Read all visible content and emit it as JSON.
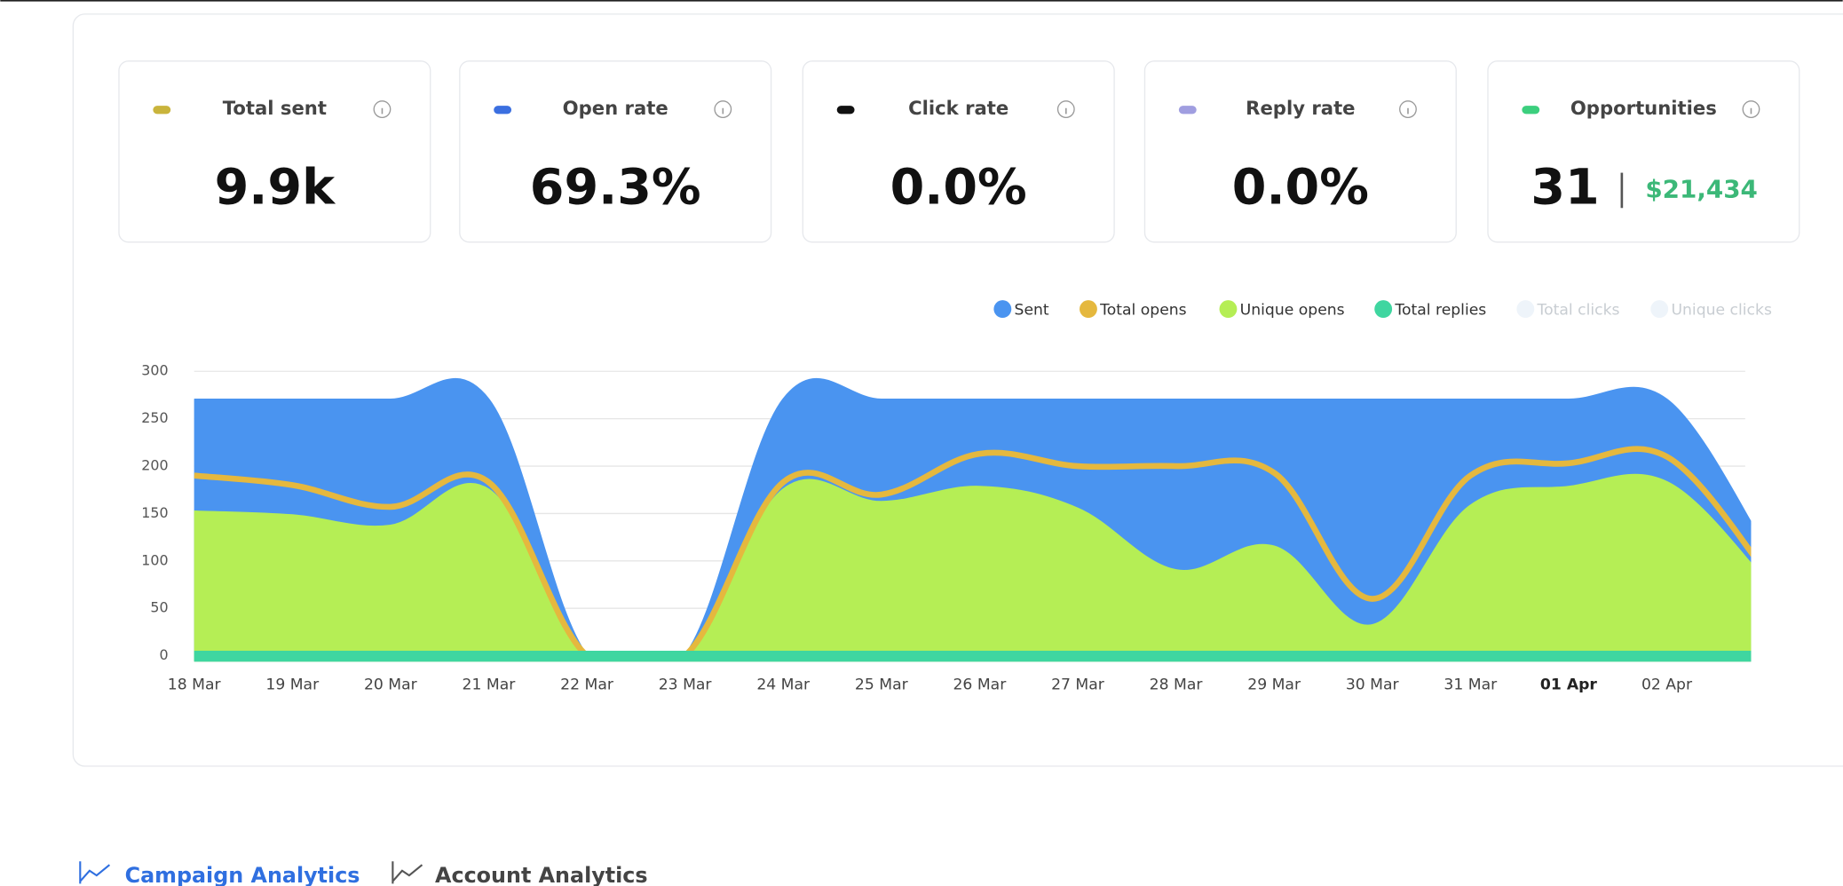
{
  "stats": [
    {
      "label": "Total sent",
      "value": "9.9k",
      "color": "#c9b43c"
    },
    {
      "label": "Open rate",
      "value": "69.3%",
      "color": "#3b6fe0"
    },
    {
      "label": "Click rate",
      "value": "0.0%",
      "color": "#111111"
    },
    {
      "label": "Reply rate",
      "value": "0.0%",
      "color": "#a09ee0"
    },
    {
      "label": "Opportunities",
      "value": "31",
      "amount": "$21,434",
      "color": "#3ccf7e"
    }
  ],
  "chart_data": {
    "type": "area",
    "categories": [
      "18 Mar",
      "19 Mar",
      "20 Mar",
      "21 Mar",
      "22 Mar",
      "23 Mar",
      "24 Mar",
      "25 Mar",
      "26 Mar",
      "27 Mar",
      "28 Mar",
      "29 Mar",
      "30 Mar",
      "31 Mar",
      "01 Apr",
      "02 Apr",
      null
    ],
    "highlight_index": 14,
    "series": [
      {
        "name": "Sent",
        "color": "#4a94f0",
        "style": "area",
        "values": [
          270,
          270,
          270,
          270,
          0,
          0,
          270,
          270,
          270,
          270,
          270,
          270,
          270,
          270,
          270,
          270,
          115
        ]
      },
      {
        "name": "Total opens",
        "color": "#e5b83e",
        "style": "line",
        "values": [
          190,
          180,
          157,
          183,
          0,
          0,
          183,
          170,
          213,
          200,
          200,
          193,
          60,
          190,
          203,
          210,
          90
        ]
      },
      {
        "name": "Unique opens",
        "color": "#b5ee55",
        "style": "area",
        "values": [
          152,
          148,
          137,
          175,
          0,
          0,
          175,
          162,
          178,
          155,
          90,
          115,
          32,
          158,
          178,
          183,
          80
        ]
      },
      {
        "name": "Total replies",
        "color": "#3fd6a0",
        "style": "area",
        "values": [
          4,
          4,
          4,
          4,
          4,
          4,
          4,
          4,
          4,
          4,
          4,
          4,
          4,
          4,
          4,
          4,
          4
        ]
      },
      {
        "name": "Total clicks",
        "color": "#eef4fa",
        "hidden": true
      },
      {
        "name": "Unique clicks",
        "color": "#eef4fa",
        "hidden": true
      }
    ],
    "ylim": [
      0,
      300
    ],
    "yticks": [
      0,
      50,
      100,
      150,
      200,
      250,
      300
    ],
    "grid": true
  },
  "tabs": [
    "Campaign Analytics",
    "Account Analytics"
  ]
}
